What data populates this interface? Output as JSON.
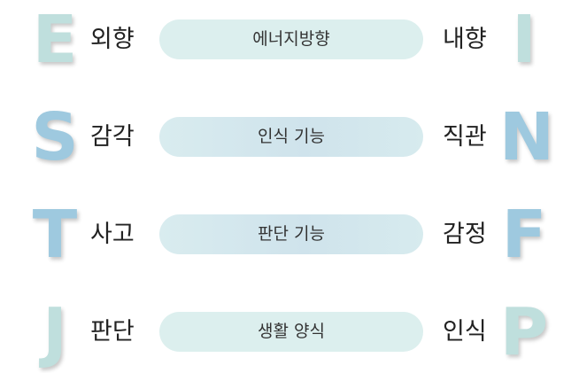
{
  "rows": [
    {
      "left_letter": "E",
      "left_color": "#bfdfdd",
      "left_word": "외향",
      "pill": "에너지방향",
      "right_word": "내향",
      "right_letter": "I",
      "right_color": "#bfdfdd"
    },
    {
      "left_letter": "S",
      "left_color": "#9ec9df",
      "left_word": "감각",
      "pill": "인식 기능",
      "right_word": "직관",
      "right_letter": "N",
      "right_color": "#9ec9df"
    },
    {
      "left_letter": "T",
      "left_color": "#9ec9df",
      "left_word": "사고",
      "pill": "판단 기능",
      "right_word": "감정",
      "right_letter": "F",
      "right_color": "#9ec9df"
    },
    {
      "left_letter": "J",
      "left_color": "#bfdfdd",
      "left_word": "판단",
      "pill": "생활 양식",
      "right_word": "인식",
      "right_letter": "P",
      "right_color": "#bfdfdd"
    }
  ]
}
